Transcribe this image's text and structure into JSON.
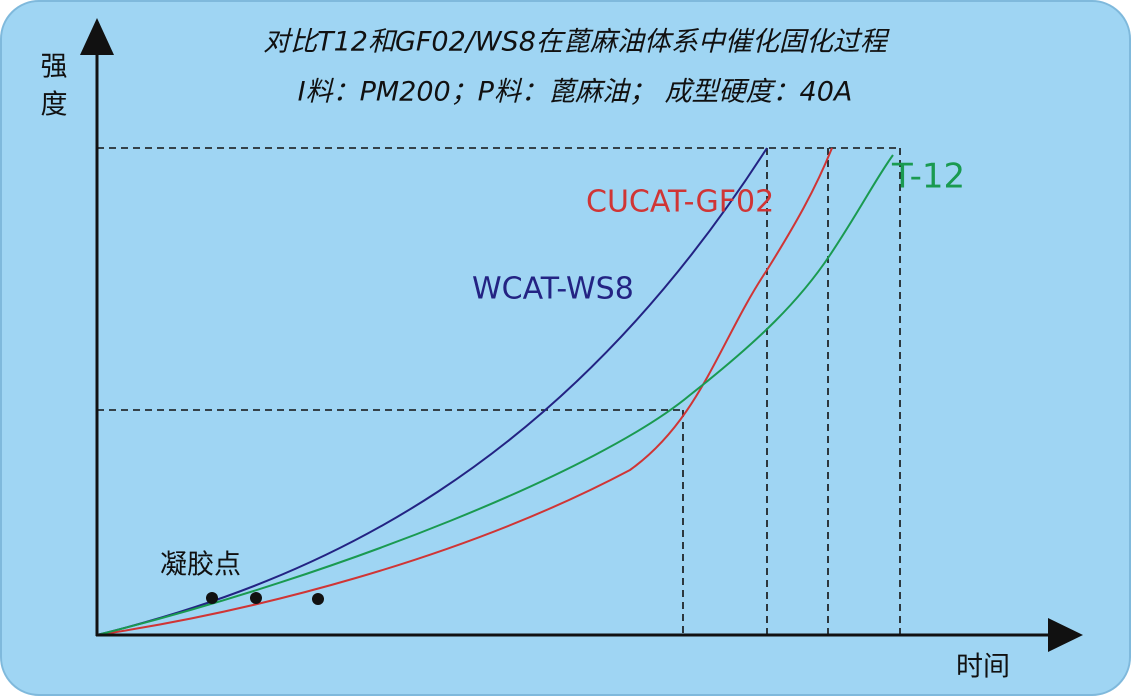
{
  "title": {
    "line1": "对比T12和GF02/WS8在蓖麻油体系中催化固化过程",
    "line2": "I料：PM200；P料：蓖麻油； 成型硬度：40A"
  },
  "axes": {
    "y_label": [
      "强",
      "度"
    ],
    "x_label": "时间"
  },
  "curves": [
    {
      "label": "WCAT-WS8"
    },
    {
      "label": "CUCAT-GF02"
    },
    {
      "label": "T-12"
    }
  ],
  "gel_point": "凝胶点"
}
